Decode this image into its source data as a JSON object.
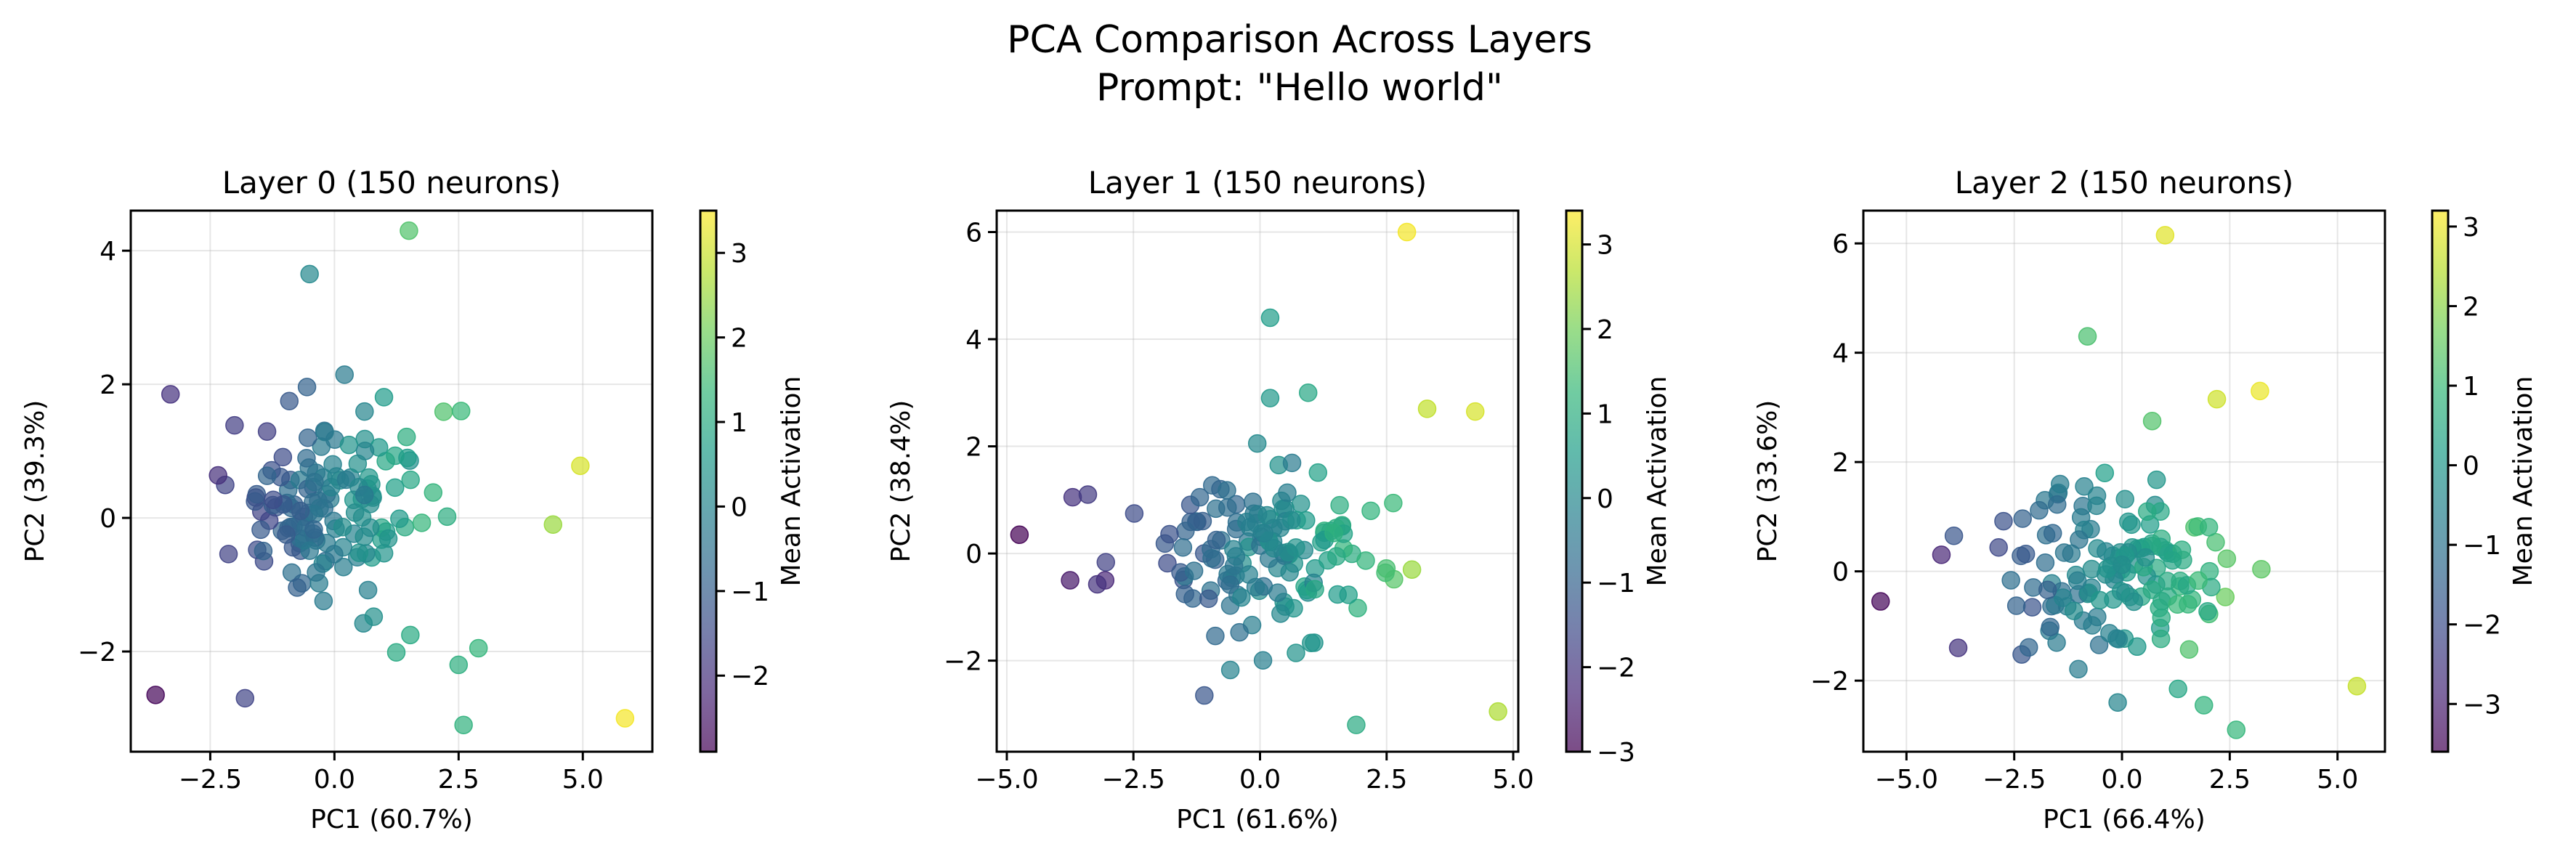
{
  "figure": {
    "title_line1": "PCA Comparison Across Layers",
    "title_line2": "Prompt: \"Hello world\""
  },
  "colormap": [
    "#440154",
    "#482878",
    "#3e4a89",
    "#31688e",
    "#26828e",
    "#1f9e89",
    "#35b779",
    "#6ece58",
    "#b5de2b",
    "#fde725"
  ],
  "chart_data": [
    {
      "type": "scatter",
      "title": "Layer 0 (150 neurons)",
      "xlabel": "PC1 (60.7%)",
      "ylabel": "PC2 (39.3%)",
      "colorbar_label": "Mean Activation",
      "grid": true,
      "xlim": [
        -4.1,
        6.4
      ],
      "ylim": [
        -3.5,
        4.6
      ],
      "xticks": [
        -2.5,
        0.0,
        2.5,
        5.0
      ],
      "xtick_labels": [
        "−2.5",
        "0.0",
        "2.5",
        "5.0"
      ],
      "yticks": [
        -2,
        0,
        2,
        4
      ],
      "ytick_labels": [
        "−2",
        "0",
        "2",
        "4"
      ],
      "clim": [
        -2.9,
        3.5
      ],
      "cticks": [
        -2,
        -1,
        0,
        1,
        2,
        3
      ],
      "ctick_labels": [
        "−2",
        "−1",
        "0",
        "1",
        "2",
        "3"
      ],
      "seed": 11,
      "cluster": {
        "n": 140,
        "cx": 0.0,
        "cy": 0.1,
        "sx": 0.95,
        "sy": 0.75,
        "c0": -0.2,
        "cslope": 0.75
      },
      "points": [
        {
          "x": 1.5,
          "y": 4.3,
          "c": 1.7
        },
        {
          "x": -0.5,
          "y": 3.65,
          "c": 0.1
        },
        {
          "x": -3.3,
          "y": 1.85,
          "c": -2.0
        },
        {
          "x": 2.55,
          "y": 1.6,
          "c": 1.4
        },
        {
          "x": 4.95,
          "y": 0.78,
          "c": 3.1
        },
        {
          "x": 4.4,
          "y": -0.1,
          "c": 2.5
        },
        {
          "x": 5.85,
          "y": -3.0,
          "c": 3.4
        },
        {
          "x": -3.6,
          "y": -2.65,
          "c": -2.8
        },
        {
          "x": -1.8,
          "y": -2.7,
          "c": -1.6
        },
        {
          "x": 2.6,
          "y": -3.1,
          "c": 1.2
        },
        {
          "x": 2.9,
          "y": -1.95,
          "c": 1.3
        },
        {
          "x": 2.5,
          "y": -2.2,
          "c": 1.1
        }
      ]
    },
    {
      "type": "scatter",
      "title": "Layer 1 (150 neurons)",
      "xlabel": "PC1 (61.6%)",
      "ylabel": "PC2 (38.4%)",
      "colorbar_label": "Mean Activation",
      "grid": true,
      "xlim": [
        -5.2,
        5.1
      ],
      "ylim": [
        -3.7,
        6.4
      ],
      "xticks": [
        -5.0,
        -2.5,
        0.0,
        2.5,
        5.0
      ],
      "xtick_labels": [
        "−5.0",
        "−2.5",
        "0.0",
        "2.5",
        "5.0"
      ],
      "yticks": [
        -2,
        0,
        2,
        4,
        6
      ],
      "ytick_labels": [
        "−2",
        "0",
        "2",
        "4",
        "6"
      ],
      "clim": [
        -3.0,
        3.4
      ],
      "cticks": [
        -3,
        -2,
        -1,
        0,
        1,
        2,
        3
      ],
      "ctick_labels": [
        "−3",
        "−2",
        "−1",
        "0",
        "1",
        "2",
        "3"
      ],
      "seed": 23,
      "cluster": {
        "n": 140,
        "cx": 0.0,
        "cy": -0.1,
        "sx": 1.2,
        "sy": 0.7,
        "c0": -0.2,
        "cslope": 0.6
      },
      "points": [
        {
          "x": 2.9,
          "y": 6.0,
          "c": 3.3
        },
        {
          "x": 0.2,
          "y": 4.4,
          "c": 0.5
        },
        {
          "x": 0.2,
          "y": 2.9,
          "c": 0.4
        },
        {
          "x": 0.95,
          "y": 3.0,
          "c": 0.8
        },
        {
          "x": 3.3,
          "y": 2.7,
          "c": 2.8
        },
        {
          "x": 4.25,
          "y": 2.65,
          "c": 3.0
        },
        {
          "x": -4.75,
          "y": 0.35,
          "c": -3.0
        },
        {
          "x": -3.75,
          "y": -0.5,
          "c": -2.6
        },
        {
          "x": -3.7,
          "y": 1.05,
          "c": -2.1
        },
        {
          "x": -3.4,
          "y": 1.1,
          "c": -1.9
        },
        {
          "x": 4.7,
          "y": -2.95,
          "c": 2.6
        },
        {
          "x": 1.9,
          "y": -3.2,
          "c": 0.9
        },
        {
          "x": -1.1,
          "y": -2.65,
          "c": -1.3
        },
        {
          "x": 3.0,
          "y": -0.3,
          "c": 2.4
        }
      ]
    },
    {
      "type": "scatter",
      "title": "Layer 2 (150 neurons)",
      "xlabel": "PC1 (66.4%)",
      "ylabel": "PC2 (33.6%)",
      "colorbar_label": "Mean Activation",
      "grid": true,
      "xlim": [
        -6.0,
        6.1
      ],
      "ylim": [
        -3.3,
        6.6
      ],
      "xticks": [
        -5.0,
        -2.5,
        0.0,
        2.5,
        5.0
      ],
      "xtick_labels": [
        "−5.0",
        "−2.5",
        "0.0",
        "2.5",
        "5.0"
      ],
      "yticks": [
        -2,
        0,
        2,
        4,
        6
      ],
      "ytick_labels": [
        "−2",
        "0",
        "2",
        "4",
        "6"
      ],
      "clim": [
        -3.6,
        3.2
      ],
      "cticks": [
        -3,
        -2,
        -1,
        0,
        1,
        2,
        3
      ],
      "ctick_labels": [
        "−3",
        "−2",
        "−1",
        "0",
        "1",
        "2",
        "3"
      ],
      "seed": 37,
      "cluster": {
        "n": 136,
        "cx": 0.0,
        "cy": 0.0,
        "sx": 1.35,
        "sy": 0.75,
        "c0": -0.2,
        "cslope": 0.6
      },
      "points": [
        {
          "x": 1.0,
          "y": 6.15,
          "c": 2.9
        },
        {
          "x": -0.8,
          "y": 4.3,
          "c": 1.2
        },
        {
          "x": 2.2,
          "y": 3.15,
          "c": 2.7
        },
        {
          "x": 3.2,
          "y": 3.3,
          "c": 3.0
        },
        {
          "x": 0.7,
          "y": 2.75,
          "c": 1.3
        },
        {
          "x": -0.4,
          "y": 1.8,
          "c": 0.2
        },
        {
          "x": -5.6,
          "y": -0.55,
          "c": -3.5
        },
        {
          "x": -3.8,
          "y": -1.4,
          "c": -2.6
        },
        {
          "x": -3.9,
          "y": 0.65,
          "c": -1.8
        },
        {
          "x": 5.45,
          "y": -2.1,
          "c": 2.6
        },
        {
          "x": 2.65,
          "y": -2.9,
          "c": 0.9
        },
        {
          "x": -0.1,
          "y": -2.4,
          "c": -0.5
        },
        {
          "x": 1.3,
          "y": -2.15,
          "c": 0.4
        },
        {
          "x": 1.9,
          "y": -2.45,
          "c": 0.8
        }
      ]
    }
  ]
}
